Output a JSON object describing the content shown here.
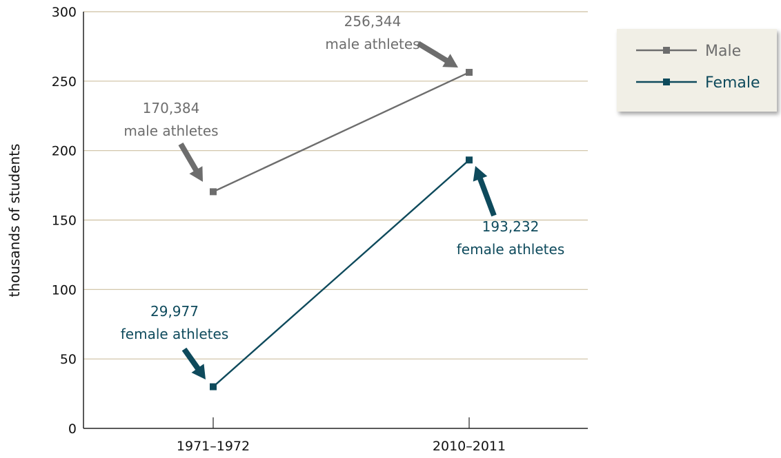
{
  "chart_data": {
    "type": "line",
    "title": "",
    "xlabel": "",
    "ylabel": "thousands of students",
    "categories": [
      "1971–1972",
      "2010–2011"
    ],
    "ylim": [
      0,
      300
    ],
    "yticks": [
      0,
      50,
      100,
      150,
      200,
      250,
      300
    ],
    "grid": true,
    "legend_position": "top-right",
    "series": [
      {
        "name": "Male",
        "color": "#6d6d6d",
        "values": [
          170.384,
          256.344
        ]
      },
      {
        "name": "Female",
        "color": "#0e4a5c",
        "values": [
          29.977,
          193.232
        ]
      }
    ],
    "annotations": [
      {
        "series": 0,
        "point": 0,
        "value_text": "170,384",
        "label_text": "male athletes"
      },
      {
        "series": 0,
        "point": 1,
        "value_text": "256,344",
        "label_text": "male athletes"
      },
      {
        "series": 1,
        "point": 0,
        "value_text": "29,977",
        "label_text": "female athletes"
      },
      {
        "series": 1,
        "point": 1,
        "value_text": "193,232",
        "label_text": "female athletes"
      }
    ]
  },
  "colors": {
    "grid": "#cdbfa0",
    "axis": "#222222",
    "legend_bg": "#f1efe6"
  }
}
